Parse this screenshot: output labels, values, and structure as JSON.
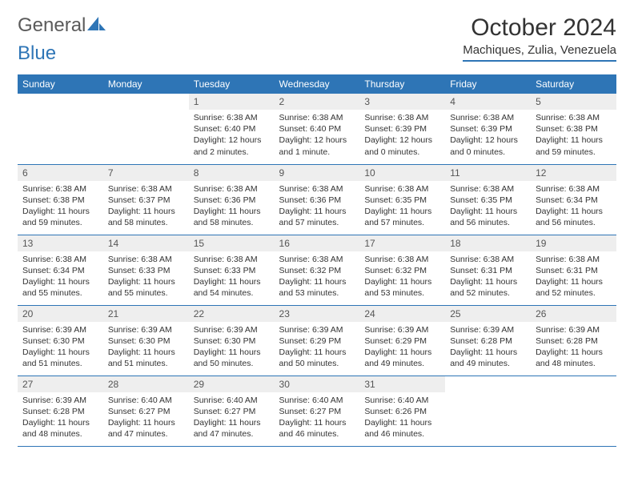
{
  "logo": {
    "text1": "General",
    "text2": "Blue"
  },
  "title": "October 2024",
  "location": "Machiques, Zulia, Venezuela",
  "colors": {
    "accent": "#2e75b6",
    "header_bg": "#2e75b6",
    "header_text": "#ffffff",
    "daynum_bg": "#eeeeee",
    "border": "#2e75b6",
    "text": "#333333"
  },
  "weekdays": [
    "Sunday",
    "Monday",
    "Tuesday",
    "Wednesday",
    "Thursday",
    "Friday",
    "Saturday"
  ],
  "cells": [
    null,
    null,
    {
      "n": "1",
      "sr": "6:38 AM",
      "ss": "6:40 PM",
      "dl": "12 hours and 2 minutes."
    },
    {
      "n": "2",
      "sr": "6:38 AM",
      "ss": "6:40 PM",
      "dl": "12 hours and 1 minute."
    },
    {
      "n": "3",
      "sr": "6:38 AM",
      "ss": "6:39 PM",
      "dl": "12 hours and 0 minutes."
    },
    {
      "n": "4",
      "sr": "6:38 AM",
      "ss": "6:39 PM",
      "dl": "12 hours and 0 minutes."
    },
    {
      "n": "5",
      "sr": "6:38 AM",
      "ss": "6:38 PM",
      "dl": "11 hours and 59 minutes."
    },
    {
      "n": "6",
      "sr": "6:38 AM",
      "ss": "6:38 PM",
      "dl": "11 hours and 59 minutes."
    },
    {
      "n": "7",
      "sr": "6:38 AM",
      "ss": "6:37 PM",
      "dl": "11 hours and 58 minutes."
    },
    {
      "n": "8",
      "sr": "6:38 AM",
      "ss": "6:36 PM",
      "dl": "11 hours and 58 minutes."
    },
    {
      "n": "9",
      "sr": "6:38 AM",
      "ss": "6:36 PM",
      "dl": "11 hours and 57 minutes."
    },
    {
      "n": "10",
      "sr": "6:38 AM",
      "ss": "6:35 PM",
      "dl": "11 hours and 57 minutes."
    },
    {
      "n": "11",
      "sr": "6:38 AM",
      "ss": "6:35 PM",
      "dl": "11 hours and 56 minutes."
    },
    {
      "n": "12",
      "sr": "6:38 AM",
      "ss": "6:34 PM",
      "dl": "11 hours and 56 minutes."
    },
    {
      "n": "13",
      "sr": "6:38 AM",
      "ss": "6:34 PM",
      "dl": "11 hours and 55 minutes."
    },
    {
      "n": "14",
      "sr": "6:38 AM",
      "ss": "6:33 PM",
      "dl": "11 hours and 55 minutes."
    },
    {
      "n": "15",
      "sr": "6:38 AM",
      "ss": "6:33 PM",
      "dl": "11 hours and 54 minutes."
    },
    {
      "n": "16",
      "sr": "6:38 AM",
      "ss": "6:32 PM",
      "dl": "11 hours and 53 minutes."
    },
    {
      "n": "17",
      "sr": "6:38 AM",
      "ss": "6:32 PM",
      "dl": "11 hours and 53 minutes."
    },
    {
      "n": "18",
      "sr": "6:38 AM",
      "ss": "6:31 PM",
      "dl": "11 hours and 52 minutes."
    },
    {
      "n": "19",
      "sr": "6:38 AM",
      "ss": "6:31 PM",
      "dl": "11 hours and 52 minutes."
    },
    {
      "n": "20",
      "sr": "6:39 AM",
      "ss": "6:30 PM",
      "dl": "11 hours and 51 minutes."
    },
    {
      "n": "21",
      "sr": "6:39 AM",
      "ss": "6:30 PM",
      "dl": "11 hours and 51 minutes."
    },
    {
      "n": "22",
      "sr": "6:39 AM",
      "ss": "6:30 PM",
      "dl": "11 hours and 50 minutes."
    },
    {
      "n": "23",
      "sr": "6:39 AM",
      "ss": "6:29 PM",
      "dl": "11 hours and 50 minutes."
    },
    {
      "n": "24",
      "sr": "6:39 AM",
      "ss": "6:29 PM",
      "dl": "11 hours and 49 minutes."
    },
    {
      "n": "25",
      "sr": "6:39 AM",
      "ss": "6:28 PM",
      "dl": "11 hours and 49 minutes."
    },
    {
      "n": "26",
      "sr": "6:39 AM",
      "ss": "6:28 PM",
      "dl": "11 hours and 48 minutes."
    },
    {
      "n": "27",
      "sr": "6:39 AM",
      "ss": "6:28 PM",
      "dl": "11 hours and 48 minutes."
    },
    {
      "n": "28",
      "sr": "6:40 AM",
      "ss": "6:27 PM",
      "dl": "11 hours and 47 minutes."
    },
    {
      "n": "29",
      "sr": "6:40 AM",
      "ss": "6:27 PM",
      "dl": "11 hours and 47 minutes."
    },
    {
      "n": "30",
      "sr": "6:40 AM",
      "ss": "6:27 PM",
      "dl": "11 hours and 46 minutes."
    },
    {
      "n": "31",
      "sr": "6:40 AM",
      "ss": "6:26 PM",
      "dl": "11 hours and 46 minutes."
    },
    null,
    null
  ]
}
